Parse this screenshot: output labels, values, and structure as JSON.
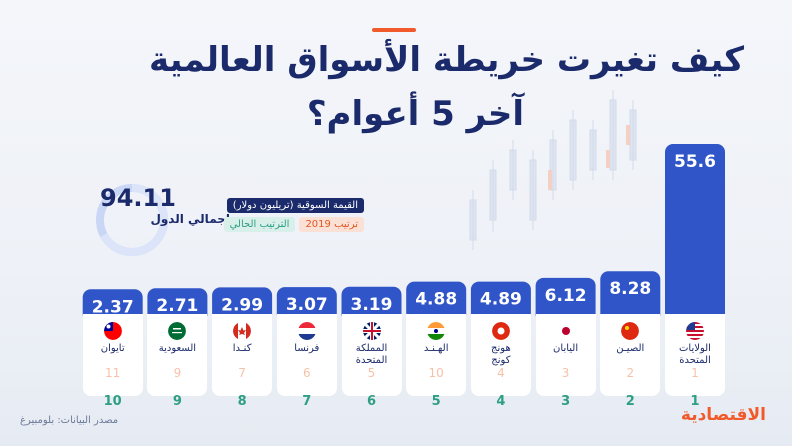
{
  "title_line1": "كيف تغيرت خريطة الأسواق العالمية",
  "title_line2": "آخر 5 أعوام؟",
  "total": {
    "value": "94.11",
    "label": "إجمالي الدول"
  },
  "legend": {
    "value_label": "القيمة السوقية (تريليون دولار)",
    "rank2019_label": "ترتيب 2019",
    "current_rank_label": "الترتيب الحالي"
  },
  "colors": {
    "bar": "#2f55c8",
    "title": "#1b2a6b",
    "accent": "#f15a2a",
    "rank_current": "#2e9e84",
    "rank_2019": "#f28f64"
  },
  "chart_data": {
    "type": "bar",
    "ylabel": "القيمة السوقية (تريليون دولار)",
    "categories": [
      "الولايات\nالمتحدة",
      "الصيـن",
      "اليابان",
      "هونج\nكونج",
      "الهـنـد",
      "المملكة\nالمتحدة",
      "فرنسا",
      "كنـدا",
      "السعودية",
      "تايوان"
    ],
    "values": [
      55.6,
      8.28,
      6.12,
      4.89,
      4.88,
      3.19,
      3.07,
      2.99,
      2.71,
      2.37
    ],
    "value_labels": [
      "55.6",
      "8.28",
      "6.12",
      "4.89",
      "4.88",
      "3.19",
      "3.07",
      "2.99",
      "2.71",
      "2.37"
    ],
    "rank_2019": [
      "1",
      "2",
      "3",
      "4",
      "10",
      "5",
      "6",
      "7",
      "9",
      "11"
    ],
    "rank_current": [
      "1",
      "2",
      "3",
      "4",
      "5",
      "6",
      "7",
      "8",
      "9",
      "10"
    ],
    "flags": [
      "us-flag-icon",
      "china-flag-icon",
      "japan-flag-icon",
      "hongkong-flag-icon",
      "india-flag-icon",
      "uk-flag-icon",
      "france-flag-icon",
      "canada-flag-icon",
      "saudi-flag-icon",
      "taiwan-flag-icon"
    ]
  },
  "source": "مصدر البيانات: بلومبيرغ",
  "logo": "الاقتصادية"
}
